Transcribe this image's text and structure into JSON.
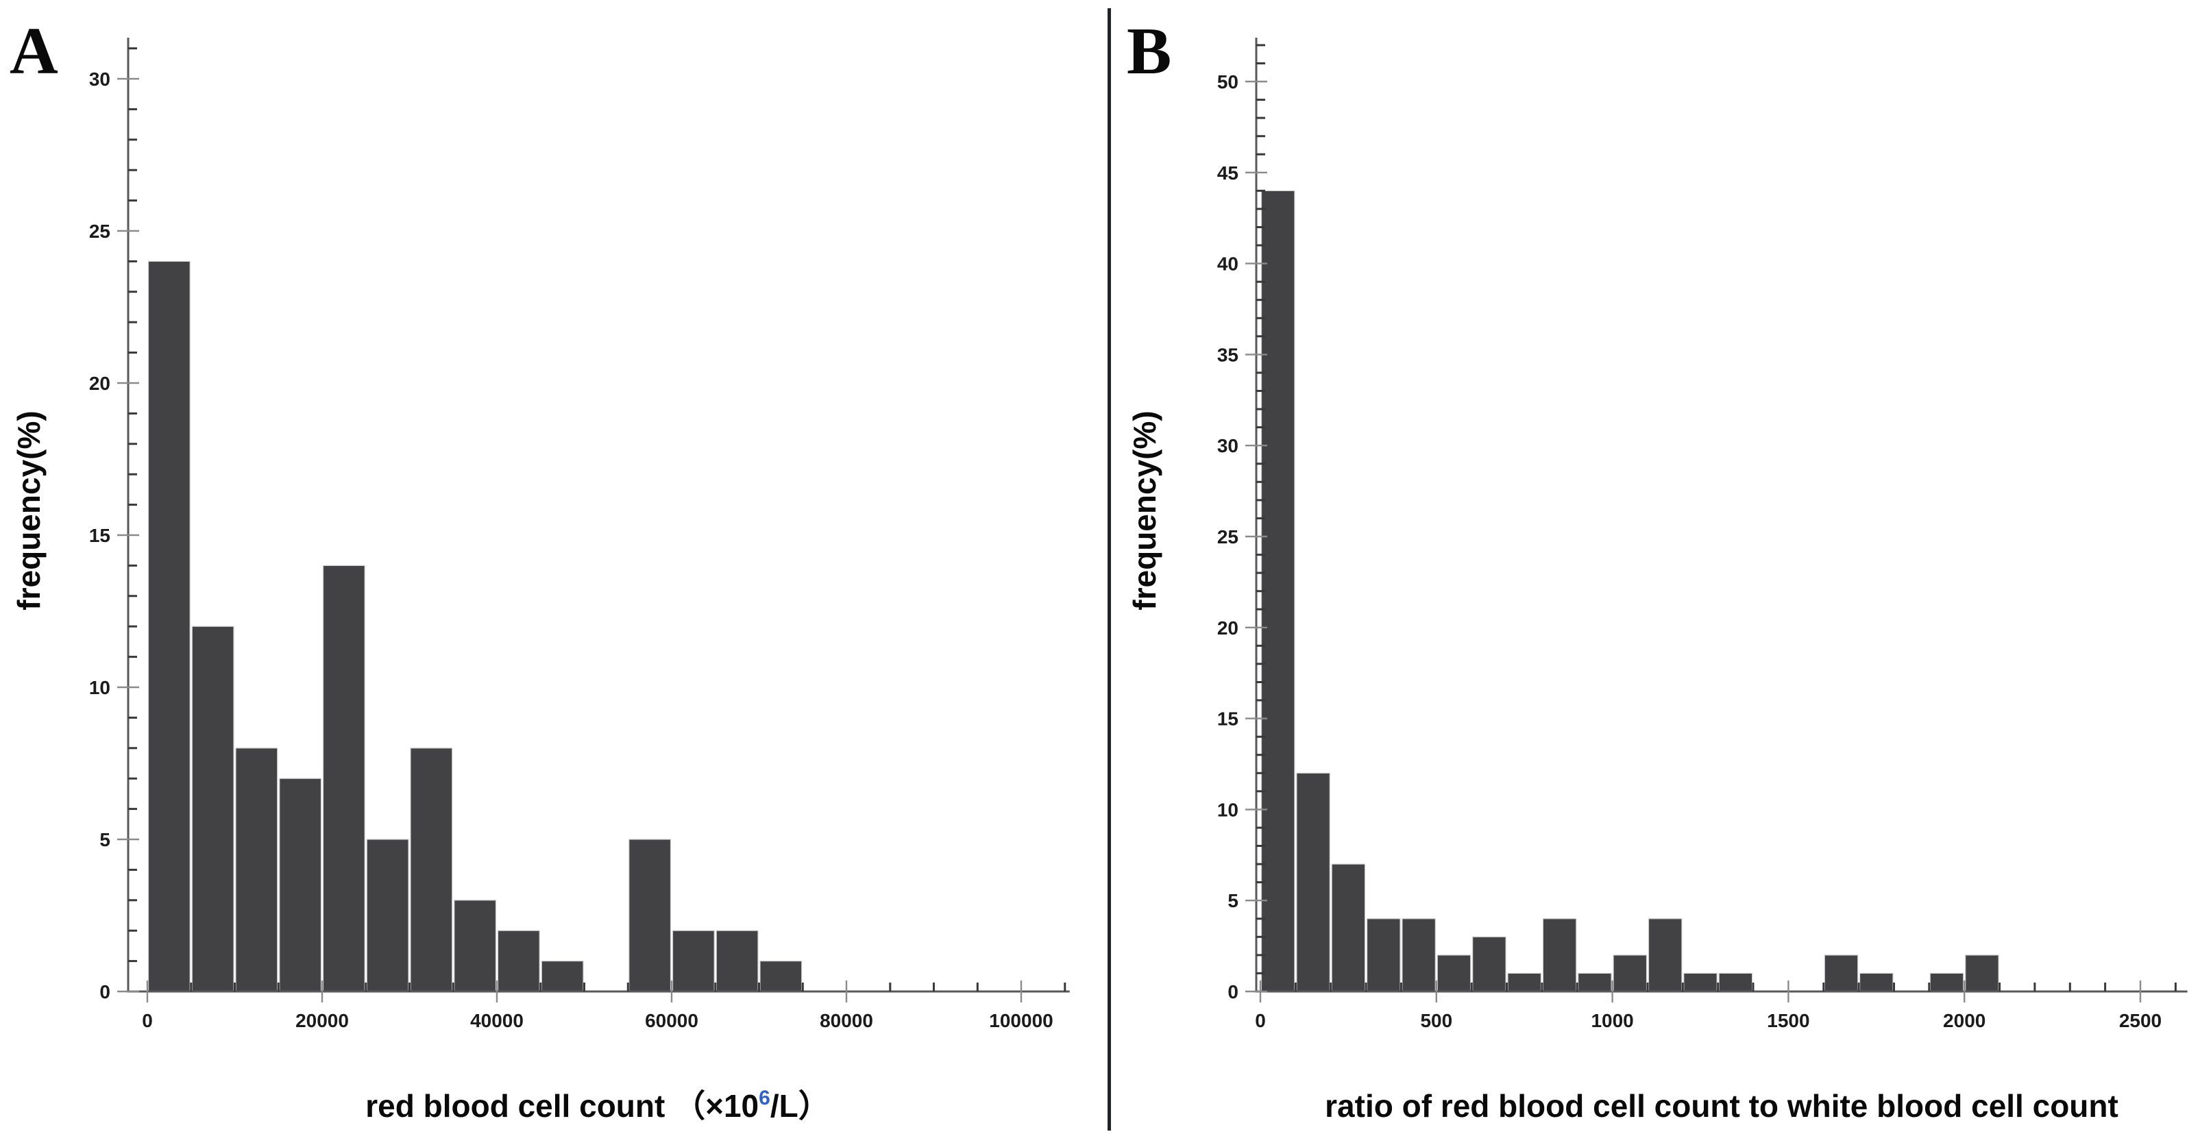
{
  "figure": {
    "description_visible_text_only": "two-panel histogram figure",
    "panels": [
      {
        "letter": "A"
      },
      {
        "letter": "B"
      }
    ]
  },
  "colors": {
    "background": "#ffffff",
    "bar_fill": "#424244",
    "bar_edge": "#cfcfcf",
    "axis_line": "#59595b",
    "minor_tick": "#39393b",
    "major_tick": "#8a8a8c",
    "tick_label": "#1b1b1b",
    "axis_title": "#0a0a0a",
    "superscript_blue": "#2e62c9",
    "divider": "#222326",
    "panel_letter": "#0a0a0a"
  },
  "chart_data": [
    {
      "type": "bar",
      "panel": "A",
      "title": "",
      "ylabel": "frequency(%)",
      "xlabel_parts": {
        "pre": "red blood cell count （×10",
        "sup": "6",
        "post": "/L）"
      },
      "bin_start": 0,
      "bin_width": 5000,
      "categories_bin_ranges": [
        "0-5000",
        "5000-10000",
        "10000-15000",
        "15000-20000",
        "20000-25000",
        "25000-30000",
        "30000-35000",
        "35000-40000",
        "40000-45000",
        "45000-50000",
        "50000-55000",
        "55000-60000",
        "60000-65000",
        "65000-70000",
        "70000-75000"
      ],
      "values": [
        24,
        12,
        8,
        7,
        14,
        5,
        8,
        3,
        2,
        1,
        0,
        5,
        2,
        2,
        1
      ],
      "xticks": [
        0,
        20000,
        40000,
        60000,
        80000,
        100000
      ],
      "xtick_labels": [
        "0",
        "20000",
        "40000",
        "60000",
        "80000",
        "100000"
      ],
      "x_minor_step": 5000,
      "x_axis_end": 105000,
      "xlim": [
        0,
        105000
      ],
      "yticks": [
        0,
        5,
        10,
        15,
        20,
        25,
        30
      ],
      "ytick_labels": [
        "0",
        "5",
        "10",
        "15",
        "20",
        "25",
        "30"
      ],
      "y_minor_max": 31,
      "ylim": [
        0,
        32
      ],
      "grid": "off",
      "legend": "none"
    },
    {
      "type": "bar",
      "panel": "B",
      "title": "",
      "ylabel": "frequency(%)",
      "xlabel_parts": {
        "pre": "ratio of red blood cell count to white blood cell count",
        "sup": "",
        "post": ""
      },
      "bin_start": 0,
      "bin_width": 100,
      "categories_bin_ranges": [
        "0-100",
        "100-200",
        "200-300",
        "300-400",
        "400-500",
        "500-600",
        "600-700",
        "700-800",
        "800-900",
        "900-1000",
        "1000-1100",
        "1100-1200",
        "1200-1300",
        "1300-1400",
        "1400-1500",
        "1500-1600",
        "1600-1700",
        "1700-1800",
        "1800-1900",
        "1900-2000",
        "2000-2100"
      ],
      "values": [
        44,
        12,
        7,
        4,
        4,
        2,
        3,
        1,
        4,
        1,
        2,
        4,
        1,
        1,
        0,
        0,
        2,
        1,
        0,
        1,
        2
      ],
      "xticks": [
        0,
        500,
        1000,
        1500,
        2000,
        2500
      ],
      "xtick_labels": [
        "0",
        "500",
        "1000",
        "1500",
        "2000",
        "2500"
      ],
      "x_minor_step": 100,
      "x_axis_end": 2620,
      "xlim": [
        0,
        2620
      ],
      "yticks": [
        0,
        5,
        10,
        15,
        20,
        25,
        30,
        35,
        40,
        45,
        50
      ],
      "ytick_labels": [
        "0",
        "5",
        "10",
        "15",
        "20",
        "25",
        "30",
        "35",
        "40",
        "45",
        "50"
      ],
      "y_minor_max": 52,
      "ylim": [
        0,
        52
      ],
      "grid": "off",
      "legend": "none"
    }
  ]
}
